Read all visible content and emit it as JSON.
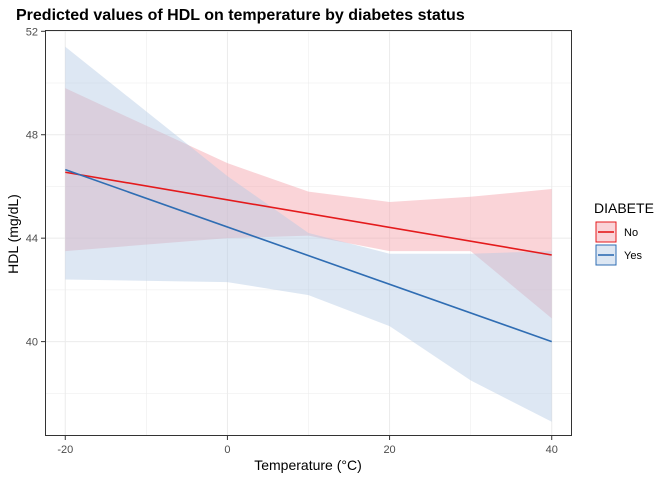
{
  "chart_data": {
    "type": "line",
    "title": "Predicted values of HDL on temperature by diabetes status",
    "xlabel": "Temperature (°C)",
    "ylabel": "HDL (mg/dL)",
    "xlim": [
      -22.5,
      42.5
    ],
    "ylim": [
      36.35,
      52.05
    ],
    "x_ticks": [
      -20,
      0,
      20,
      40
    ],
    "x_tick_labels": [
      "-20",
      "0",
      "20",
      "40"
    ],
    "y_ticks": [
      40,
      44,
      48,
      52
    ],
    "y_tick_labels": [
      "40",
      "44",
      "48",
      "52"
    ],
    "grid": true,
    "legend": {
      "title": "DIABETE",
      "position": "right"
    },
    "series": [
      {
        "name": "No",
        "color": "#e41a1c",
        "fill": "#f4a0a8",
        "x": [
          -20,
          40
        ],
        "y": [
          46.55,
          43.35
        ],
        "band_x": [
          -20,
          0,
          10,
          20,
          30,
          40
        ],
        "band_lower": [
          43.5,
          44.0,
          44.1,
          43.5,
          43.5,
          40.9
        ],
        "band_upper": [
          49.8,
          46.9,
          45.8,
          45.4,
          45.6,
          45.9
        ]
      },
      {
        "name": "Yes",
        "color": "#2f6db3",
        "fill": "#b4c9e4",
        "x": [
          -20,
          40
        ],
        "y": [
          46.65,
          40.0
        ],
        "band_x": [
          -20,
          0,
          10,
          20,
          30,
          40
        ],
        "band_lower": [
          42.4,
          42.3,
          41.8,
          40.6,
          38.5,
          36.9
        ],
        "band_upper": [
          51.4,
          46.4,
          44.2,
          43.4,
          43.4,
          43.5
        ]
      }
    ]
  }
}
